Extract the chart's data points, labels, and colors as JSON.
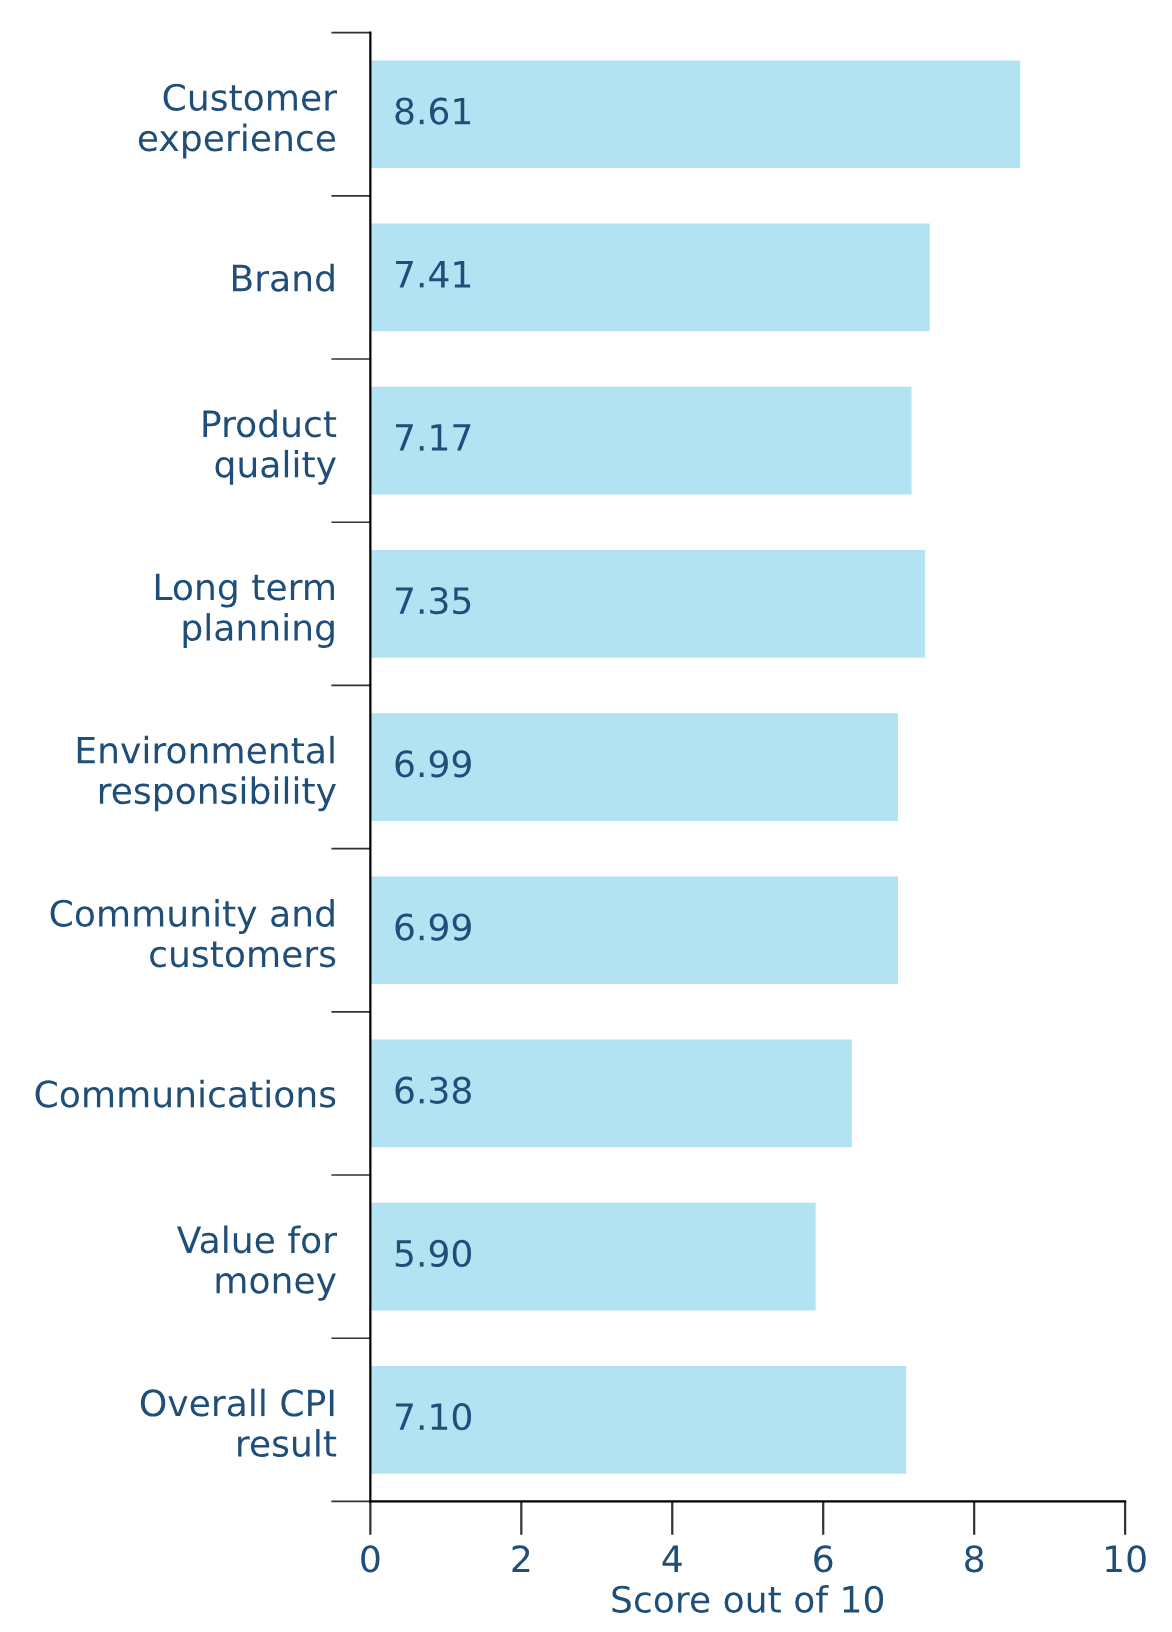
{
  "chart_data": {
    "type": "bar",
    "orientation": "horizontal",
    "xlabel": "Score out of 10",
    "categories": [
      "Customer\nexperience",
      "Brand",
      "Product\nquality",
      "Long term\nplanning",
      "Environmental\nresponsibility",
      "Community and\ncustomers",
      "Communications",
      "Value for\nmoney",
      "Overall CPI\nresult"
    ],
    "values": [
      8.61,
      7.41,
      7.17,
      7.35,
      6.99,
      6.99,
      6.38,
      5.9,
      7.1
    ],
    "value_labels": [
      "8.61",
      "7.41",
      "7.17",
      "7.35",
      "6.99",
      "6.99",
      "6.38",
      "5.90",
      "7.10"
    ],
    "color": "#b3e2f2",
    "xlim": [
      0,
      10
    ],
    "xticks": [
      0,
      2,
      4,
      6,
      8,
      10
    ],
    "grid": false
  }
}
